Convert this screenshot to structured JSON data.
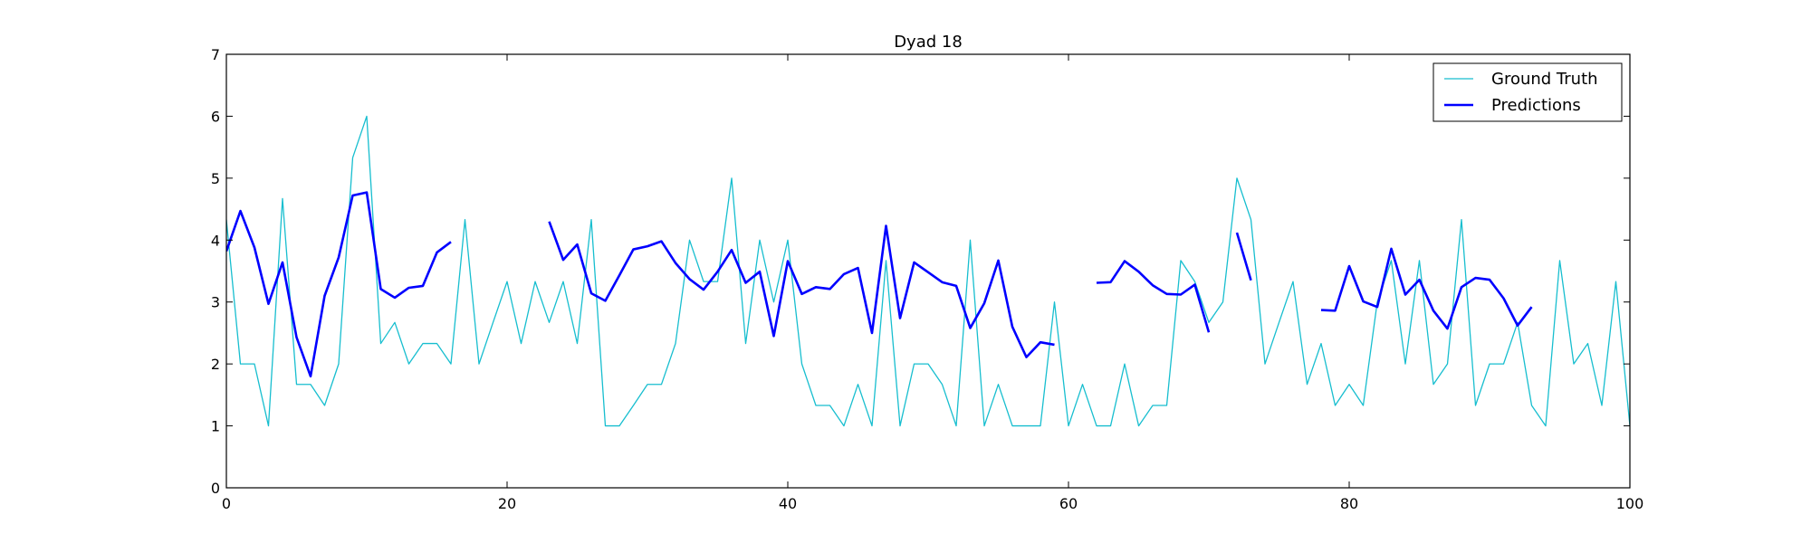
{
  "chart_data": {
    "type": "line",
    "title": "Dyad 18",
    "xlabel": "",
    "ylabel": "",
    "xlim": [
      0,
      100
    ],
    "ylim": [
      0,
      7
    ],
    "xticks": [
      0,
      20,
      40,
      60,
      80,
      100
    ],
    "yticks": [
      0,
      1,
      2,
      3,
      4,
      5,
      6,
      7
    ],
    "grid": false,
    "legend_position": "top-right",
    "series": [
      {
        "name": "Ground Truth",
        "color": "#17becf",
        "line_width": "thin",
        "x": [
          0,
          1,
          2,
          3,
          4,
          5,
          6,
          7,
          8,
          9,
          10,
          11,
          12,
          13,
          14,
          15,
          16,
          17,
          18,
          19,
          20,
          21,
          22,
          23,
          24,
          25,
          26,
          27,
          28,
          29,
          30,
          31,
          32,
          33,
          34,
          35,
          36,
          37,
          38,
          39,
          40,
          41,
          42,
          43,
          44,
          45,
          46,
          47,
          48,
          49,
          50,
          51,
          52,
          53,
          54,
          55,
          56,
          57,
          58,
          59,
          60,
          61,
          62,
          63,
          64,
          65,
          66,
          67,
          68,
          69,
          70,
          71,
          72,
          73,
          74,
          75,
          76,
          77,
          78,
          79,
          80,
          81,
          82,
          83,
          84,
          85,
          86,
          87,
          88,
          89,
          90,
          91,
          92,
          93,
          94,
          95,
          96,
          97,
          98,
          99,
          100
        ],
        "y": [
          4.33,
          2.0,
          2.0,
          1.0,
          4.67,
          1.67,
          1.67,
          1.33,
          2.0,
          5.33,
          6.0,
          2.33,
          2.67,
          2.0,
          2.33,
          2.33,
          2.0,
          4.33,
          2.0,
          2.67,
          3.33,
          2.33,
          3.33,
          2.67,
          3.33,
          2.33,
          4.33,
          1.0,
          1.0,
          1.33,
          1.67,
          1.67,
          2.33,
          4.0,
          3.33,
          3.33,
          5.0,
          2.33,
          4.0,
          3.0,
          4.0,
          2.0,
          1.33,
          1.33,
          1.0,
          1.67,
          1.0,
          3.67,
          1.0,
          2.0,
          2.0,
          1.67,
          1.0,
          4.0,
          1.0,
          1.67,
          1.0,
          1.0,
          1.0,
          3.0,
          1.0,
          1.67,
          1.0,
          1.0,
          2.0,
          1.0,
          1.33,
          1.33,
          3.67,
          3.33,
          2.67,
          3.0,
          5.0,
          4.33,
          2.0,
          2.67,
          3.33,
          1.67,
          2.33,
          1.33,
          1.67,
          1.33,
          3.0,
          3.67,
          2.0,
          3.67,
          1.67,
          2.0,
          4.33,
          1.33,
          2.0,
          2.0,
          2.67,
          1.33,
          1.0,
          3.67,
          2.0,
          2.33,
          1.33,
          3.33,
          1.0
        ]
      },
      {
        "name": "Predictions",
        "color": "#0000ff",
        "line_width": "thick",
        "segments": [
          {
            "x": [
              0,
              1,
              2,
              3,
              4,
              5,
              6,
              7,
              8,
              9,
              10,
              11,
              12,
              13,
              14,
              15,
              16
            ],
            "y": [
              3.82,
              4.47,
              3.88,
              2.97,
              3.64,
              2.43,
              1.8,
              3.1,
              3.72,
              4.72,
              4.77,
              3.21,
              3.07,
              3.23,
              3.26,
              3.8,
              3.97
            ]
          },
          {
            "x": [
              23,
              24,
              25,
              26,
              27,
              28,
              29,
              30,
              31,
              32,
              33,
              34,
              35,
              36,
              37,
              38,
              39,
              40,
              41,
              42,
              43,
              44,
              45,
              46,
              47,
              48,
              49,
              50,
              51,
              52,
              53,
              54,
              55,
              56,
              57,
              58,
              59
            ],
            "y": [
              4.3,
              3.68,
              3.93,
              3.14,
              3.02,
              3.43,
              3.85,
              3.9,
              3.98,
              3.63,
              3.37,
              3.2,
              3.49,
              3.84,
              3.31,
              3.49,
              2.45,
              3.66,
              3.13,
              3.24,
              3.21,
              3.45,
              3.55,
              2.5,
              4.23,
              2.74,
              3.64,
              3.48,
              3.32,
              3.26,
              2.58,
              2.98,
              3.67,
              2.6,
              2.11,
              2.35,
              2.31
            ]
          },
          {
            "x": [
              62,
              63,
              64,
              65,
              66,
              67,
              68,
              69,
              70
            ],
            "y": [
              3.31,
              3.32,
              3.66,
              3.49,
              3.27,
              3.13,
              3.12,
              3.28,
              2.51
            ]
          },
          {
            "x": [
              72,
              73
            ],
            "y": [
              4.12,
              3.35
            ]
          },
          {
            "x": [
              78,
              79,
              80,
              81,
              82,
              83,
              84,
              85,
              86,
              87,
              88,
              89,
              90,
              91,
              92,
              93
            ],
            "y": [
              2.87,
              2.86,
              3.58,
              3.01,
              2.92,
              3.86,
              3.12,
              3.36,
              2.86,
              2.57,
              3.24,
              3.39,
              3.36,
              3.06,
              2.62,
              2.92
            ]
          }
        ]
      }
    ]
  }
}
